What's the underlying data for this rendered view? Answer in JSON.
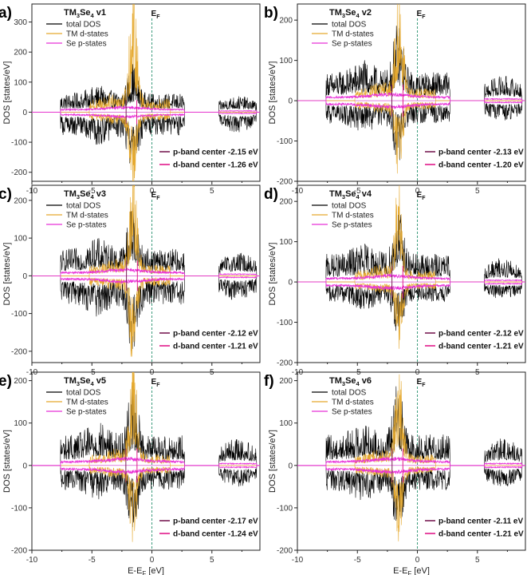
{
  "chart_data": {
    "type": "line",
    "shared": {
      "xlabel": "E-E",
      "xlabel_sub": "F",
      "xlabel_unit": " [eV]",
      "ylabel": "DOS [states/eV]",
      "xlim": [
        -10,
        9
      ],
      "xticks": [
        -10,
        -5,
        0,
        5
      ],
      "fermi_label": "E",
      "fermi_sub": "F",
      "fermi_energy": 0,
      "legend": [
        "total DOS",
        "TM d-states",
        "Se p-states"
      ],
      "colors": {
        "total": "#000000",
        "tm_d": "#e5a92f",
        "se_p": "#e830d8",
        "fermi": "#3a9a7a",
        "center_line": "#7a1e55",
        "d_center_line": "#e11a8a"
      }
    },
    "panels": [
      {
        "label": "a)",
        "title_main": "TM",
        "title_sub3": "3",
        "title_mid": "Se",
        "title_sub4": "4",
        "title_ver": " v1",
        "ylim": [
          -230,
          360
        ],
        "yticks": [
          -200,
          -100,
          0,
          100,
          200,
          300
        ],
        "p_band_center_text": "p-band center -2.15 eV",
        "d_band_center_text": "d-band center -1.26 eV",
        "p_band_center": -2.15,
        "d_band_center": -1.26,
        "peaks": {
          "total_max": 175,
          "d_max": 340,
          "total_min": -215,
          "d_min": -210
        }
      },
      {
        "label": "b)",
        "title_main": "TM",
        "title_sub3": "3",
        "title_mid": "Se",
        "title_sub4": "4",
        "title_ver": " v2",
        "ylim": [
          -200,
          240
        ],
        "yticks": [
          -200,
          -100,
          0,
          100,
          200
        ],
        "p_band_center_text": "p-band center -2.13 eV",
        "d_band_center_text": "d-band center -1.20 eV",
        "p_band_center": -2.13,
        "d_band_center": -1.2,
        "peaks": {
          "total_max": 200,
          "d_max": 230,
          "total_min": -160,
          "d_min": -160
        }
      },
      {
        "label": "c)",
        "title_main": "TM",
        "title_sub3": "3",
        "title_mid": "Se",
        "title_sub4": "4",
        "title_ver": " v3",
        "ylim": [
          -230,
          240
        ],
        "yticks": [
          -200,
          -100,
          0,
          100,
          200
        ],
        "p_band_center_text": "p-band center -2.12 eV",
        "d_band_center_text": "d-band center -1.21 eV",
        "p_band_center": -2.12,
        "d_band_center": -1.21,
        "peaks": {
          "total_max": 200,
          "d_max": 220,
          "total_min": -215,
          "d_min": -205
        }
      },
      {
        "label": "d)",
        "title_main": "TM",
        "title_sub3": "3",
        "title_mid": "Se",
        "title_sub4": "4",
        "title_ver": " v4",
        "ylim": [
          -200,
          240
        ],
        "yticks": [
          -200,
          -100,
          0,
          100,
          200
        ],
        "p_band_center_text": "p-band center -2.12 eV",
        "d_band_center_text": "d-band center -1.21 eV",
        "p_band_center": -2.12,
        "d_band_center": -1.21,
        "peaks": {
          "total_max": 195,
          "d_max": 215,
          "total_min": -140,
          "d_min": -135
        }
      },
      {
        "label": "e)",
        "title_main": "TM",
        "title_sub3": "3",
        "title_mid": "Se",
        "title_sub4": "4",
        "title_ver": " v5",
        "ylim": [
          -200,
          220
        ],
        "yticks": [
          -200,
          -100,
          0,
          100,
          200
        ],
        "p_band_center_text": "p-band center -2.17 eV",
        "d_band_center_text": "d-band center -1.24 eV",
        "p_band_center": -2.17,
        "d_band_center": -1.24,
        "peaks": {
          "total_max": 205,
          "d_max": 200,
          "total_min": -160,
          "d_min": -150
        }
      },
      {
        "label": "f)",
        "title_main": "TM",
        "title_sub3": "3",
        "title_mid": "Se",
        "title_sub4": "4",
        "title_ver": " v6",
        "ylim": [
          -200,
          220
        ],
        "yticks": [
          -200,
          -100,
          0,
          100,
          200
        ],
        "p_band_center_text": "p-band center -2.11 eV",
        "d_band_center_text": "d-band center -1.21 eV",
        "p_band_center": -2.11,
        "d_band_center": -1.21,
        "peaks": {
          "total_max": 205,
          "d_max": 195,
          "total_min": -165,
          "d_min": -150
        }
      }
    ]
  }
}
